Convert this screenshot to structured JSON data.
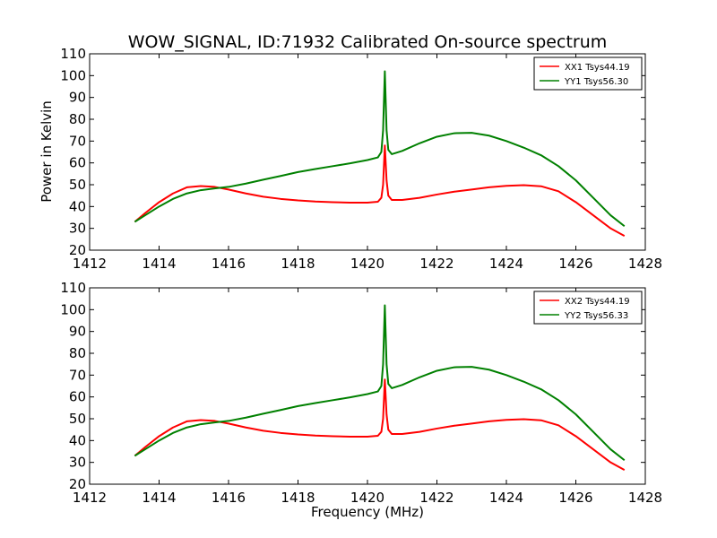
{
  "chart_data": [
    {
      "type": "line",
      "title": "WOW_SIGNAL, ID:71932 Calibrated On-source spectrum",
      "xlabel": "",
      "ylabel": "Power in Kelvin",
      "xlim": [
        1412,
        1428
      ],
      "ylim": [
        20,
        110
      ],
      "xticks": [
        "1412",
        "1414",
        "1416",
        "1418",
        "1420",
        "1422",
        "1424",
        "1426",
        "1428"
      ],
      "yticks": [
        "20",
        "30",
        "40",
        "50",
        "60",
        "70",
        "80",
        "90",
        "100",
        "110"
      ],
      "grid": false,
      "legend_position": "top-right",
      "series": [
        {
          "name": "XX1 Tsys44.19",
          "color": "#ff0000",
          "x": [
            1413.3,
            1413.6,
            1414.0,
            1414.4,
            1414.8,
            1415.2,
            1415.6,
            1416.0,
            1416.5,
            1417.0,
            1417.5,
            1418.0,
            1418.5,
            1419.0,
            1419.5,
            1420.0,
            1420.3,
            1420.4,
            1420.45,
            1420.5,
            1420.55,
            1420.6,
            1420.7,
            1421.0,
            1421.5,
            1422.0,
            1422.5,
            1423.0,
            1423.5,
            1424.0,
            1424.5,
            1425.0,
            1425.5,
            1426.0,
            1426.5,
            1427.0,
            1427.4
          ],
          "values": [
            33,
            37,
            42,
            46,
            48.8,
            49.4,
            49,
            47.8,
            46,
            44.5,
            43.5,
            42.8,
            42.3,
            42,
            41.8,
            41.8,
            42.2,
            44,
            50,
            68,
            52,
            45,
            43,
            43,
            44,
            45.5,
            46.8,
            47.8,
            48.8,
            49.5,
            49.8,
            49.3,
            47,
            42,
            36,
            30,
            26.5
          ]
        },
        {
          "name": "YY1 Tsys56.30",
          "color": "#008000",
          "x": [
            1413.3,
            1413.6,
            1414.0,
            1414.4,
            1414.8,
            1415.2,
            1415.6,
            1416.0,
            1416.5,
            1417.0,
            1417.5,
            1418.0,
            1418.5,
            1419.0,
            1419.5,
            1420.0,
            1420.3,
            1420.4,
            1420.45,
            1420.5,
            1420.55,
            1420.6,
            1420.7,
            1421.0,
            1421.5,
            1422.0,
            1422.5,
            1423.0,
            1423.5,
            1424.0,
            1424.5,
            1425.0,
            1425.5,
            1426.0,
            1426.5,
            1427.0,
            1427.4
          ],
          "values": [
            33,
            36,
            40,
            43.5,
            46,
            47.5,
            48.3,
            49,
            50.5,
            52.3,
            54,
            55.8,
            57.2,
            58.5,
            59.8,
            61.3,
            62.5,
            65,
            75,
            102,
            75,
            66,
            64,
            65.5,
            69,
            72,
            73.6,
            73.8,
            72.5,
            70,
            67,
            63.5,
            58.5,
            52,
            44,
            36,
            31
          ]
        }
      ]
    },
    {
      "type": "line",
      "title": "",
      "xlabel": "Frequency (MHz)",
      "ylabel": "",
      "xlim": [
        1412,
        1428
      ],
      "ylim": [
        20,
        110
      ],
      "xticks": [
        "1412",
        "1414",
        "1416",
        "1418",
        "1420",
        "1422",
        "1424",
        "1426",
        "1428"
      ],
      "yticks": [
        "20",
        "30",
        "40",
        "50",
        "60",
        "70",
        "80",
        "90",
        "100",
        "110"
      ],
      "grid": false,
      "legend_position": "top-right",
      "series": [
        {
          "name": "XX2 Tsys44.19",
          "color": "#ff0000",
          "x": [
            1413.3,
            1413.6,
            1414.0,
            1414.4,
            1414.8,
            1415.2,
            1415.6,
            1416.0,
            1416.5,
            1417.0,
            1417.5,
            1418.0,
            1418.5,
            1419.0,
            1419.5,
            1420.0,
            1420.3,
            1420.4,
            1420.45,
            1420.5,
            1420.55,
            1420.6,
            1420.7,
            1421.0,
            1421.5,
            1422.0,
            1422.5,
            1423.0,
            1423.5,
            1424.0,
            1424.5,
            1425.0,
            1425.5,
            1426.0,
            1426.5,
            1427.0,
            1427.4
          ],
          "values": [
            33,
            37,
            42,
            46,
            48.8,
            49.4,
            49,
            47.8,
            46,
            44.5,
            43.5,
            42.8,
            42.3,
            42,
            41.8,
            41.8,
            42.2,
            44,
            50,
            68,
            52,
            45,
            43,
            43,
            44,
            45.5,
            46.8,
            47.8,
            48.8,
            49.5,
            49.8,
            49.3,
            47,
            42,
            36,
            30,
            26.5
          ]
        },
        {
          "name": "YY2 Tsys56.33",
          "color": "#008000",
          "x": [
            1413.3,
            1413.6,
            1414.0,
            1414.4,
            1414.8,
            1415.2,
            1415.6,
            1416.0,
            1416.5,
            1417.0,
            1417.5,
            1418.0,
            1418.5,
            1419.0,
            1419.5,
            1420.0,
            1420.3,
            1420.4,
            1420.45,
            1420.5,
            1420.55,
            1420.6,
            1420.7,
            1421.0,
            1421.5,
            1422.0,
            1422.5,
            1423.0,
            1423.5,
            1424.0,
            1424.5,
            1425.0,
            1425.5,
            1426.0,
            1426.5,
            1427.0,
            1427.4
          ],
          "values": [
            33,
            36,
            40,
            43.5,
            46,
            47.5,
            48.3,
            49,
            50.5,
            52.3,
            54,
            55.8,
            57.2,
            58.5,
            59.8,
            61.3,
            62.5,
            65,
            75,
            102,
            75,
            66,
            64,
            65.5,
            69,
            72,
            73.6,
            73.8,
            72.5,
            70,
            67,
            63.5,
            58.5,
            52,
            44,
            36,
            31
          ]
        }
      ]
    }
  ]
}
